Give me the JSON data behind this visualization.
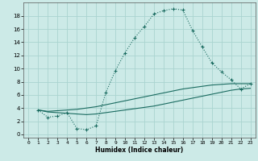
{
  "xlabel": "Humidex (Indice chaleur)",
  "bg_color": "#cceae7",
  "grid_color": "#aad4d0",
  "line_color": "#1a6b60",
  "xlim": [
    -0.5,
    23.5
  ],
  "ylim": [
    -0.5,
    20
  ],
  "yticks": [
    0,
    2,
    4,
    6,
    8,
    10,
    12,
    14,
    16,
    18
  ],
  "xticks": [
    0,
    1,
    2,
    3,
    4,
    5,
    6,
    7,
    8,
    9,
    10,
    11,
    12,
    13,
    14,
    15,
    16,
    17,
    18,
    19,
    20,
    21,
    22,
    23
  ],
  "curve1_x": [
    1,
    2,
    3,
    4,
    5,
    6,
    7,
    8,
    9,
    10,
    11,
    12,
    13,
    14,
    15,
    16,
    17,
    18,
    19,
    20,
    21,
    22,
    23
  ],
  "curve1_y": [
    3.7,
    2.6,
    2.8,
    3.3,
    0.9,
    0.7,
    1.3,
    6.3,
    9.7,
    12.4,
    14.7,
    16.4,
    18.3,
    18.8,
    19.1,
    18.9,
    15.8,
    13.3,
    10.9,
    9.5,
    8.3,
    6.9,
    7.7
  ],
  "curve2_x": [
    1,
    2,
    3,
    4,
    5,
    6,
    7,
    8,
    9,
    10,
    11,
    12,
    13,
    14,
    15,
    16,
    17,
    18,
    19,
    20,
    21,
    22,
    23
  ],
  "curve2_y": [
    3.7,
    3.5,
    3.6,
    3.7,
    3.8,
    4.0,
    4.2,
    4.5,
    4.8,
    5.1,
    5.4,
    5.7,
    6.0,
    6.3,
    6.6,
    6.9,
    7.1,
    7.3,
    7.5,
    7.6,
    7.7,
    7.7,
    7.7
  ],
  "curve3_x": [
    1,
    2,
    3,
    4,
    5,
    6,
    7,
    8,
    9,
    10,
    11,
    12,
    13,
    14,
    15,
    16,
    17,
    18,
    19,
    20,
    21,
    22,
    23
  ],
  "curve3_y": [
    3.7,
    3.4,
    3.3,
    3.2,
    3.1,
    3.0,
    3.1,
    3.3,
    3.5,
    3.7,
    3.9,
    4.1,
    4.3,
    4.6,
    4.9,
    5.2,
    5.5,
    5.8,
    6.1,
    6.4,
    6.7,
    6.9,
    7.0
  ]
}
